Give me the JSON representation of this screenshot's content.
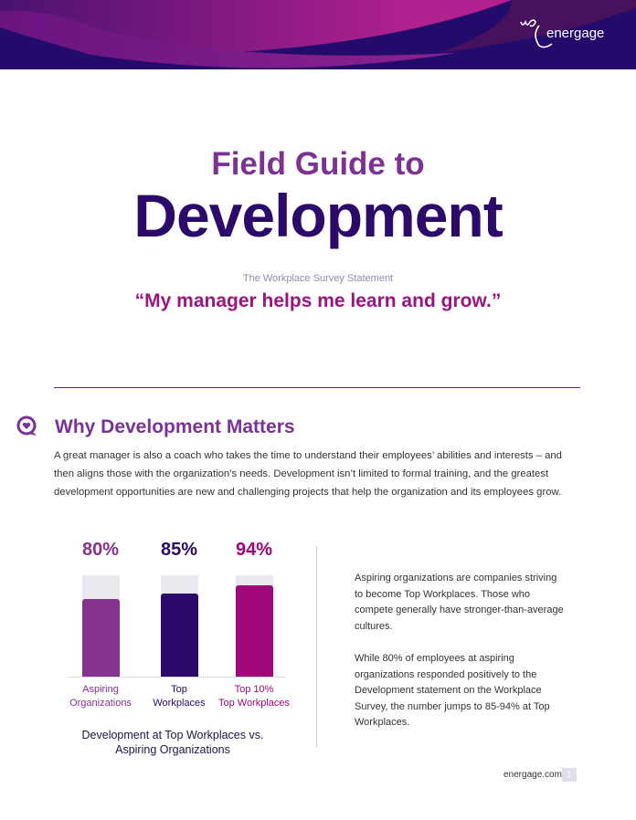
{
  "header": {
    "logo_text": "energage"
  },
  "title": {
    "line1": "Field Guide to",
    "line2": "Development"
  },
  "statement": {
    "label": "The Workplace Survey Statement",
    "quote": "“My manager helps me learn and grow.”"
  },
  "section": {
    "title": "Why Development Matters",
    "body": "A great manager is also a coach who takes the time to understand their employees’ abilities and interests – and then aligns those with the organization’s needs. Development isn’t limited to formal training, and the greatest development opportunities are new and challenging projects that help the organization and its employees grow."
  },
  "chart_data": {
    "type": "bar",
    "title": "Development at Top Workplaces vs. Aspiring Organizations",
    "categories": [
      "Aspiring Organizations",
      "Top Workplaces",
      "Top 10% Top Workplaces"
    ],
    "category_lines": [
      [
        "Aspiring",
        "Organizations"
      ],
      [
        "Top",
        "Workplaces"
      ],
      [
        "Top 10%",
        "Top Workplaces"
      ]
    ],
    "values": [
      80,
      85,
      94
    ],
    "value_labels": [
      "80%",
      "85%",
      "94%"
    ],
    "colors": [
      "#86328f",
      "#2b0a6b",
      "#a0087a"
    ],
    "ylim": [
      0,
      100
    ]
  },
  "side": {
    "p1": "Aspiring organizations are companies striving to become Top Workplaces. Those who compete generally have stronger-than-average cultures.",
    "p2": "While 80% of employees at aspiring organizations responded positively to the Development statement on the Workplace Survey, the number jumps to 85-94% at Top Workplaces."
  },
  "footer": {
    "site": "energage.com",
    "page": "1"
  }
}
